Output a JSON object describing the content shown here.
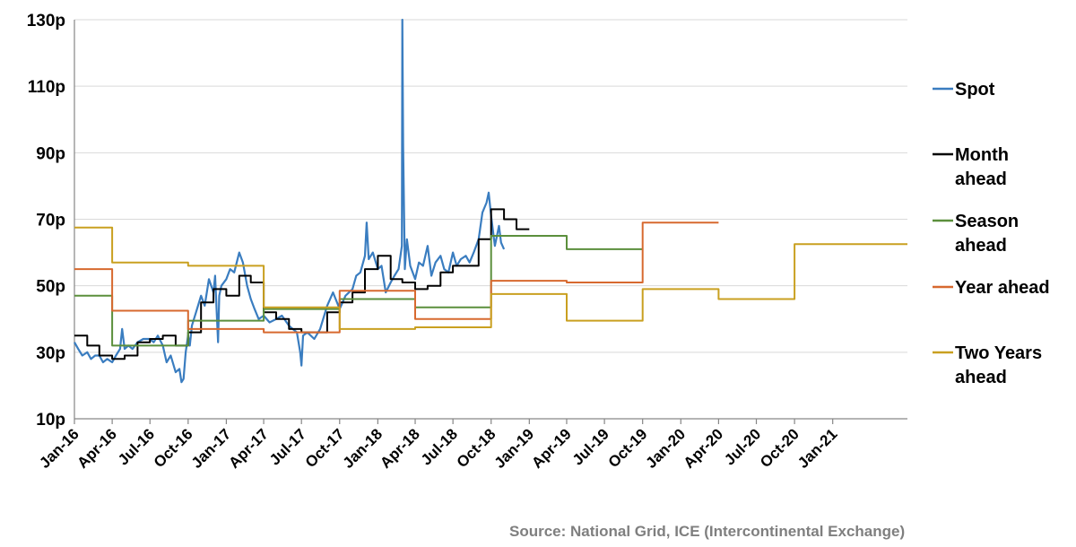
{
  "chart_data": {
    "type": "line",
    "x_type": "date",
    "xlim": [
      "2016-01-01",
      "2021-06-30"
    ],
    "ylim": [
      10,
      130
    ],
    "y_ticks": [
      {
        "value": 10,
        "label": "10p"
      },
      {
        "value": 30,
        "label": "30p"
      },
      {
        "value": 50,
        "label": "50p"
      },
      {
        "value": 70,
        "label": "70p"
      },
      {
        "value": 90,
        "label": "90p"
      },
      {
        "value": 110,
        "label": "110p"
      },
      {
        "value": 130,
        "label": "130p"
      }
    ],
    "x_ticks": [
      {
        "date": "2016-01-01",
        "label": "Jan-16"
      },
      {
        "date": "2016-04-01",
        "label": "Apr-16"
      },
      {
        "date": "2016-07-01",
        "label": "Jul-16"
      },
      {
        "date": "2016-10-01",
        "label": "Oct-16"
      },
      {
        "date": "2017-01-01",
        "label": "Jan-17"
      },
      {
        "date": "2017-04-01",
        "label": "Apr-17"
      },
      {
        "date": "2017-07-01",
        "label": "Jul-17"
      },
      {
        "date": "2017-10-01",
        "label": "Oct-17"
      },
      {
        "date": "2018-01-01",
        "label": "Jan-18"
      },
      {
        "date": "2018-04-01",
        "label": "Apr-18"
      },
      {
        "date": "2018-07-01",
        "label": "Jul-18"
      },
      {
        "date": "2018-10-01",
        "label": "Oct-18"
      },
      {
        "date": "2019-01-01",
        "label": "Jan-19"
      },
      {
        "date": "2019-04-01",
        "label": "Apr-19"
      },
      {
        "date": "2019-07-01",
        "label": "Jul-19"
      },
      {
        "date": "2019-10-01",
        "label": "Oct-19"
      },
      {
        "date": "2020-01-01",
        "label": "Jan-20"
      },
      {
        "date": "2020-04-01",
        "label": "Apr-20"
      },
      {
        "date": "2020-07-01",
        "label": "Jul-20"
      },
      {
        "date": "2020-10-01",
        "label": "Oct-20"
      },
      {
        "date": "2021-01-01",
        "label": "Jan-21"
      }
    ],
    "grid": "horizontal",
    "legend_position": "right",
    "series": [
      {
        "name": "Spot",
        "color": "#3a7dc0",
        "step": false,
        "points": [
          [
            "2016-01-01",
            33
          ],
          [
            "2016-01-10",
            31
          ],
          [
            "2016-01-20",
            29
          ],
          [
            "2016-02-01",
            30
          ],
          [
            "2016-02-10",
            28
          ],
          [
            "2016-02-20",
            29
          ],
          [
            "2016-03-01",
            29
          ],
          [
            "2016-03-10",
            27
          ],
          [
            "2016-03-20",
            28
          ],
          [
            "2016-04-01",
            27
          ],
          [
            "2016-04-10",
            29
          ],
          [
            "2016-04-20",
            31
          ],
          [
            "2016-04-25",
            37
          ],
          [
            "2016-05-01",
            31
          ],
          [
            "2016-05-10",
            32
          ],
          [
            "2016-05-20",
            31
          ],
          [
            "2016-06-01",
            33
          ],
          [
            "2016-06-15",
            34
          ],
          [
            "2016-07-01",
            34
          ],
          [
            "2016-07-10",
            33
          ],
          [
            "2016-07-20",
            35
          ],
          [
            "2016-08-01",
            32
          ],
          [
            "2016-08-10",
            27
          ],
          [
            "2016-08-20",
            29
          ],
          [
            "2016-09-01",
            24
          ],
          [
            "2016-09-10",
            25
          ],
          [
            "2016-09-15",
            21
          ],
          [
            "2016-09-20",
            22
          ],
          [
            "2016-09-25",
            30
          ],
          [
            "2016-10-01",
            35
          ],
          [
            "2016-10-05",
            32
          ],
          [
            "2016-10-10",
            38
          ],
          [
            "2016-10-20",
            42
          ],
          [
            "2016-11-01",
            47
          ],
          [
            "2016-11-10",
            44
          ],
          [
            "2016-11-20",
            52
          ],
          [
            "2016-12-01",
            48
          ],
          [
            "2016-12-05",
            53
          ],
          [
            "2016-12-10",
            39
          ],
          [
            "2016-12-12",
            33
          ],
          [
            "2016-12-15",
            47
          ],
          [
            "2016-12-20",
            50
          ],
          [
            "2017-01-01",
            52
          ],
          [
            "2017-01-10",
            55
          ],
          [
            "2017-01-20",
            54
          ],
          [
            "2017-02-01",
            60
          ],
          [
            "2017-02-10",
            57
          ],
          [
            "2017-02-20",
            50
          ],
          [
            "2017-03-01",
            46
          ],
          [
            "2017-03-10",
            43
          ],
          [
            "2017-03-20",
            40
          ],
          [
            "2017-04-01",
            41
          ],
          [
            "2017-04-15",
            39
          ],
          [
            "2017-05-01",
            40
          ],
          [
            "2017-05-15",
            41
          ],
          [
            "2017-06-01",
            38
          ],
          [
            "2017-06-10",
            37
          ],
          [
            "2017-06-20",
            36
          ],
          [
            "2017-06-28",
            30
          ],
          [
            "2017-07-01",
            26
          ],
          [
            "2017-07-05",
            35
          ],
          [
            "2017-07-15",
            36
          ],
          [
            "2017-08-01",
            34
          ],
          [
            "2017-08-15",
            37
          ],
          [
            "2017-09-01",
            44
          ],
          [
            "2017-09-15",
            48
          ],
          [
            "2017-10-01",
            43
          ],
          [
            "2017-10-15",
            47
          ],
          [
            "2017-11-01",
            49
          ],
          [
            "2017-11-10",
            53
          ],
          [
            "2017-11-20",
            54
          ],
          [
            "2017-12-01",
            59
          ],
          [
            "2017-12-05",
            69
          ],
          [
            "2017-12-10",
            58
          ],
          [
            "2017-12-20",
            60
          ],
          [
            "2018-01-01",
            55
          ],
          [
            "2018-01-10",
            56
          ],
          [
            "2018-01-20",
            48
          ],
          [
            "2018-02-01",
            51
          ],
          [
            "2018-02-10",
            53
          ],
          [
            "2018-02-20",
            55
          ],
          [
            "2018-02-28",
            62
          ],
          [
            "2018-03-01",
            130
          ],
          [
            "2018-03-03",
            92
          ],
          [
            "2018-03-07",
            55
          ],
          [
            "2018-03-12",
            64
          ],
          [
            "2018-03-20",
            56
          ],
          [
            "2018-04-01",
            52
          ],
          [
            "2018-04-10",
            57
          ],
          [
            "2018-04-20",
            56
          ],
          [
            "2018-05-01",
            62
          ],
          [
            "2018-05-10",
            53
          ],
          [
            "2018-05-20",
            57
          ],
          [
            "2018-06-01",
            59
          ],
          [
            "2018-06-10",
            55
          ],
          [
            "2018-06-20",
            54
          ],
          [
            "2018-07-01",
            60
          ],
          [
            "2018-07-10",
            56
          ],
          [
            "2018-07-20",
            58
          ],
          [
            "2018-08-01",
            59
          ],
          [
            "2018-08-10",
            57
          ],
          [
            "2018-08-20",
            60
          ],
          [
            "2018-09-01",
            64
          ],
          [
            "2018-09-10",
            72
          ],
          [
            "2018-09-20",
            75
          ],
          [
            "2018-09-25",
            78
          ],
          [
            "2018-10-01",
            71
          ],
          [
            "2018-10-10",
            62
          ],
          [
            "2018-10-20",
            68
          ],
          [
            "2018-10-25",
            63
          ],
          [
            "2018-11-01",
            61
          ]
        ]
      },
      {
        "name": "Month ahead",
        "color": "#000000",
        "step": true,
        "points": [
          [
            "2016-01-01",
            35
          ],
          [
            "2016-02-01",
            32
          ],
          [
            "2016-03-01",
            29
          ],
          [
            "2016-04-01",
            28
          ],
          [
            "2016-05-01",
            29
          ],
          [
            "2016-06-01",
            33
          ],
          [
            "2016-07-01",
            34
          ],
          [
            "2016-08-01",
            35
          ],
          [
            "2016-09-01",
            32
          ],
          [
            "2016-10-01",
            36
          ],
          [
            "2016-11-01",
            45
          ],
          [
            "2016-12-01",
            49
          ],
          [
            "2017-01-01",
            47
          ],
          [
            "2017-02-01",
            53
          ],
          [
            "2017-03-01",
            51
          ],
          [
            "2017-04-01",
            42
          ],
          [
            "2017-05-01",
            40
          ],
          [
            "2017-06-01",
            37
          ],
          [
            "2017-07-01",
            36
          ],
          [
            "2017-08-01",
            36
          ],
          [
            "2017-09-01",
            42
          ],
          [
            "2017-10-01",
            45
          ],
          [
            "2017-11-01",
            48
          ],
          [
            "2017-12-01",
            55
          ],
          [
            "2018-01-01",
            59
          ],
          [
            "2018-02-01",
            52
          ],
          [
            "2018-03-01",
            51
          ],
          [
            "2018-04-01",
            49
          ],
          [
            "2018-05-01",
            50
          ],
          [
            "2018-06-01",
            54
          ],
          [
            "2018-07-01",
            56
          ],
          [
            "2018-08-01",
            56
          ],
          [
            "2018-09-01",
            64
          ],
          [
            "2018-10-01",
            73
          ],
          [
            "2018-11-01",
            70
          ],
          [
            "2018-12-01",
            67
          ],
          [
            "2019-01-01",
            67
          ]
        ]
      },
      {
        "name": "Season ahead",
        "color": "#5b8f3c",
        "step": true,
        "points": [
          [
            "2016-01-01",
            47
          ],
          [
            "2016-04-01",
            32
          ],
          [
            "2016-10-01",
            39.5
          ],
          [
            "2017-04-01",
            43
          ],
          [
            "2017-10-01",
            46
          ],
          [
            "2018-04-01",
            43.5
          ],
          [
            "2018-10-01",
            65
          ],
          [
            "2019-04-01",
            61
          ],
          [
            "2019-10-01",
            61
          ]
        ]
      },
      {
        "name": "Year ahead",
        "color": "#d7692f",
        "step": true,
        "points": [
          [
            "2016-01-01",
            55
          ],
          [
            "2016-04-01",
            42.5
          ],
          [
            "2016-10-01",
            37
          ],
          [
            "2017-04-01",
            36
          ],
          [
            "2017-10-01",
            48.5
          ],
          [
            "2018-04-01",
            40
          ],
          [
            "2018-10-01",
            51.5
          ],
          [
            "2019-04-01",
            51
          ],
          [
            "2019-10-01",
            69
          ],
          [
            "2020-04-01",
            69
          ]
        ]
      },
      {
        "name": "Two Years ahead",
        "color": "#c9a020",
        "step": true,
        "points": [
          [
            "2016-01-01",
            67.5
          ],
          [
            "2016-04-01",
            57
          ],
          [
            "2016-10-01",
            56
          ],
          [
            "2017-04-01",
            43.5
          ],
          [
            "2017-10-01",
            37
          ],
          [
            "2018-04-01",
            37.5
          ],
          [
            "2018-10-01",
            47.5
          ],
          [
            "2019-04-01",
            39.5
          ],
          [
            "2019-10-01",
            49
          ],
          [
            "2020-04-01",
            46
          ],
          [
            "2020-10-01",
            62.5
          ],
          [
            "2021-06-30",
            62.5
          ]
        ]
      }
    ],
    "legend": [
      {
        "lines": [
          "Spot"
        ],
        "color": "#3a7dc0"
      },
      {
        "lines": [
          "Month",
          "ahead"
        ],
        "color": "#000000"
      },
      {
        "lines": [
          "Season",
          "ahead"
        ],
        "color": "#5b8f3c"
      },
      {
        "lines": [
          "Year ahead"
        ],
        "color": "#d7692f"
      },
      {
        "lines": [
          "Two Years",
          "ahead"
        ],
        "color": "#c9a020"
      }
    ]
  },
  "source": "Source: National Grid, ICE (Intercontinental Exchange)"
}
